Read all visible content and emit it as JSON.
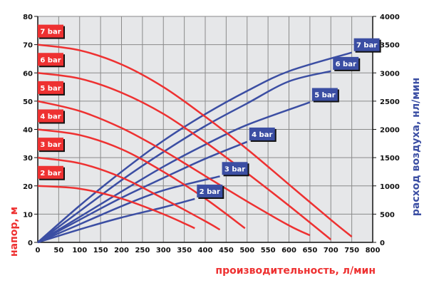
{
  "chart_data": {
    "type": "line",
    "xlabel": "производительность, л/мин",
    "ylabel_left": "напор, м",
    "ylabel_right": "расход воздуха, нл/мин",
    "xlim": [
      0,
      800
    ],
    "ylim_left": [
      0,
      80
    ],
    "ylim_right": [
      0,
      4000
    ],
    "x_ticks": [
      0,
      50,
      100,
      150,
      200,
      250,
      300,
      350,
      400,
      450,
      500,
      550,
      600,
      650,
      700,
      750,
      800
    ],
    "y_left_ticks": [
      0,
      10,
      20,
      30,
      40,
      50,
      60,
      70,
      80
    ],
    "y_right_ticks": [
      0,
      500,
      1000,
      1500,
      2000,
      2500,
      3000,
      3500,
      4000
    ],
    "grid": true,
    "colors": {
      "head": "#ee3131",
      "air": "#3b4ea3",
      "plot_bg": "#e6e7e9",
      "grid": "#8a8a8a"
    },
    "head_series": [
      {
        "name": "7 bar",
        "points": [
          [
            0,
            70
          ],
          [
            100,
            68
          ],
          [
            200,
            63
          ],
          [
            300,
            55
          ],
          [
            400,
            44.5
          ],
          [
            500,
            33
          ],
          [
            600,
            20.5
          ],
          [
            700,
            8
          ],
          [
            750,
            2
          ]
        ]
      },
      {
        "name": "6 bar",
        "points": [
          [
            0,
            60
          ],
          [
            100,
            58
          ],
          [
            200,
            53
          ],
          [
            300,
            45.5
          ],
          [
            400,
            35.5
          ],
          [
            500,
            24.5
          ],
          [
            600,
            13
          ],
          [
            700,
            1
          ]
        ]
      },
      {
        "name": "5 bar",
        "points": [
          [
            0,
            50
          ],
          [
            100,
            46.5
          ],
          [
            200,
            40.5
          ],
          [
            300,
            32.5
          ],
          [
            400,
            23.5
          ],
          [
            500,
            14.5
          ],
          [
            600,
            6
          ],
          [
            650,
            2.5
          ]
        ]
      },
      {
        "name": "4 bar",
        "points": [
          [
            0,
            40
          ],
          [
            100,
            38
          ],
          [
            200,
            33
          ],
          [
            300,
            25
          ],
          [
            400,
            15.5
          ],
          [
            495,
            5
          ]
        ]
      },
      {
        "name": "3 bar",
        "points": [
          [
            0,
            30
          ],
          [
            100,
            28
          ],
          [
            200,
            23
          ],
          [
            300,
            15.5
          ],
          [
            400,
            7.5
          ],
          [
            435,
            4.5
          ]
        ]
      },
      {
        "name": "2 bar",
        "points": [
          [
            0,
            20
          ],
          [
            100,
            19
          ],
          [
            200,
            15.5
          ],
          [
            300,
            10
          ],
          [
            375,
            5
          ]
        ]
      }
    ],
    "air_series": [
      {
        "name": "7 bar",
        "points": [
          [
            0,
            0
          ],
          [
            100,
            650
          ],
          [
            200,
            1250
          ],
          [
            300,
            1800
          ],
          [
            400,
            2270
          ],
          [
            500,
            2680
          ],
          [
            600,
            3030
          ],
          [
            750,
            3360
          ]
        ]
      },
      {
        "name": "6 bar",
        "points": [
          [
            0,
            0
          ],
          [
            100,
            550
          ],
          [
            200,
            1100
          ],
          [
            300,
            1600
          ],
          [
            400,
            2060
          ],
          [
            500,
            2460
          ],
          [
            600,
            2850
          ],
          [
            700,
            3030
          ]
        ]
      },
      {
        "name": "5 bar",
        "points": [
          [
            0,
            0
          ],
          [
            100,
            450
          ],
          [
            200,
            900
          ],
          [
            300,
            1340
          ],
          [
            400,
            1730
          ],
          [
            500,
            2080
          ],
          [
            650,
            2480
          ]
        ]
      },
      {
        "name": "4 bar",
        "points": [
          [
            0,
            0
          ],
          [
            100,
            400
          ],
          [
            200,
            790
          ],
          [
            300,
            1140
          ],
          [
            400,
            1480
          ],
          [
            500,
            1780
          ]
        ]
      },
      {
        "name": "3 bar",
        "points": [
          [
            0,
            0
          ],
          [
            100,
            320
          ],
          [
            200,
            640
          ],
          [
            300,
            920
          ],
          [
            435,
            1170
          ]
        ]
      },
      {
        "name": "2 bar",
        "points": [
          [
            0,
            0
          ],
          [
            100,
            230
          ],
          [
            200,
            440
          ],
          [
            300,
            620
          ],
          [
            375,
            770
          ]
        ]
      }
    ]
  }
}
